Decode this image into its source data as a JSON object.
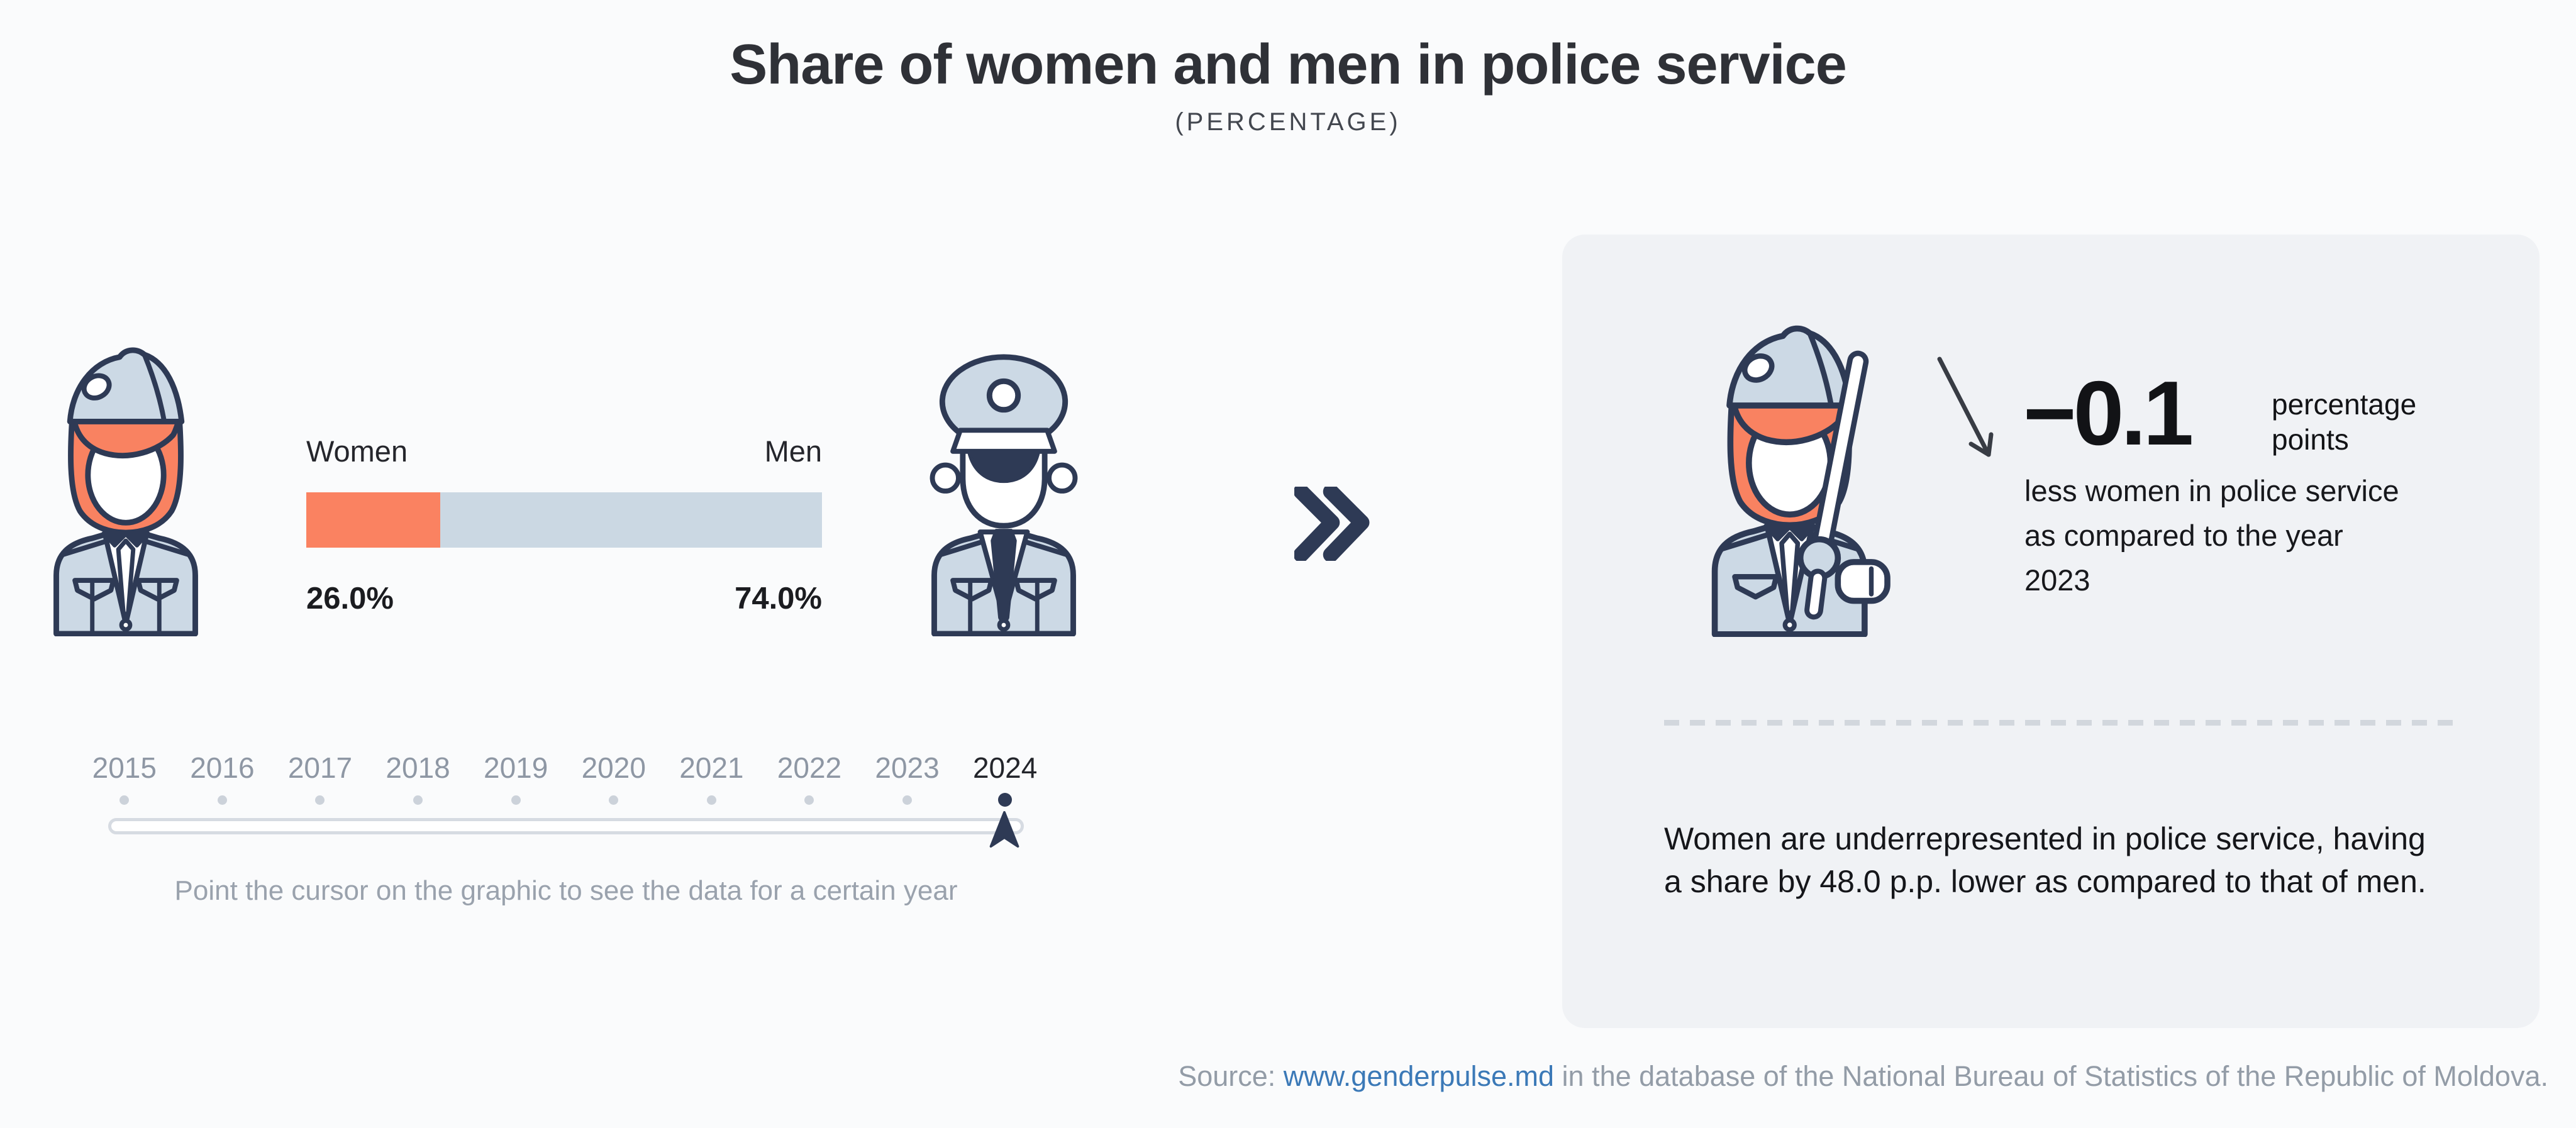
{
  "title": "Share of women and men in police service",
  "subtitle": "(PERCENTAGE)",
  "chart_data": {
    "type": "bar",
    "title": "Share of women and men in police service",
    "subtitle": "(PERCENTAGE)",
    "unit": "percent",
    "categories": [
      "Women",
      "Men"
    ],
    "values": [
      26.0,
      74.0
    ],
    "value_labels": [
      "26.0%",
      "74.0%"
    ],
    "selected_year": "2024",
    "years": [
      "2015",
      "2016",
      "2017",
      "2018",
      "2019",
      "2020",
      "2021",
      "2022",
      "2023",
      "2024"
    ],
    "colors": {
      "women": "#fa8261",
      "men": "#cbd8e3"
    },
    "legend_position": "above-bar",
    "grid": false
  },
  "timeline": {
    "years": [
      "2015",
      "2016",
      "2017",
      "2018",
      "2019",
      "2020",
      "2021",
      "2022",
      "2023",
      "2024"
    ],
    "selected_year": "2024",
    "hint": "Point the cursor on the graphic to see the data for a certain year"
  },
  "panel": {
    "delta_value": "−0.1",
    "delta_unit": "percentage points",
    "delta_description": "less women in police service as compared to the year 2023",
    "summary": "Women are underrepresented in police service, having a share by 48.0 p.p. lower as compared to that of men."
  },
  "source": {
    "prefix": "Source: ",
    "link": "www.genderpulse.md",
    "suffix": " in the database of the National Bureau of Statistics of the Republic of Moldova."
  },
  "icon_colors": {
    "outline_navy": "#2e3a55",
    "uniform_light": "#ccd9e5",
    "hair_orange": "#f98261",
    "page_background": "#fafbfc",
    "panel_background": "#f0f2f5",
    "link_blue": "#3b79b7"
  }
}
